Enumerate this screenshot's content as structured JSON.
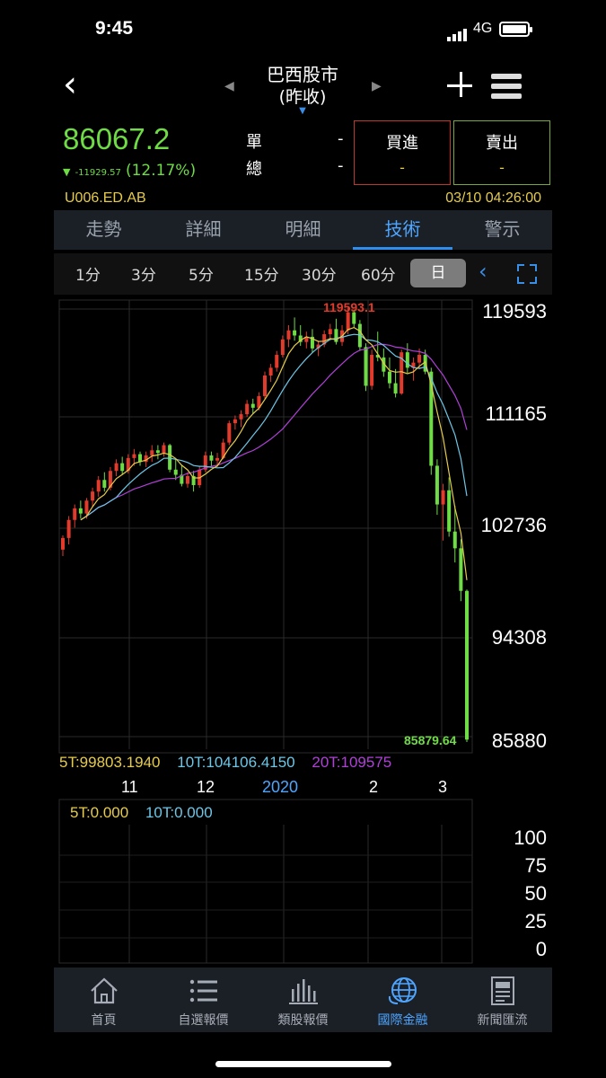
{
  "status_bar": {
    "time": "9:45",
    "network": "4G"
  },
  "header": {
    "title": "巴西股市",
    "subtitle": "(昨收)",
    "back_icon": "chevron-left-icon",
    "add_icon": "plus-icon",
    "menu_icon": "hamburger-menu-icon"
  },
  "quote": {
    "price": "86067.2",
    "change_abs": "-11929.57",
    "change_pct": "(12.17%)",
    "vol_single_label": "單",
    "vol_single_value": "-",
    "vol_total_label": "總",
    "vol_total_value": "-",
    "buy_label": "買進",
    "buy_value": "-",
    "sell_label": "賣出",
    "sell_value": "-",
    "code": "U006.ED.AB",
    "datetime": "03/10 04:26:00",
    "up_color": "#e23b2b",
    "down_color": "#6fdc46"
  },
  "tabs": [
    {
      "label": "走勢",
      "active": false
    },
    {
      "label": "詳細",
      "active": false
    },
    {
      "label": "明細",
      "active": false
    },
    {
      "label": "技術",
      "active": true
    },
    {
      "label": "警示",
      "active": false
    }
  ],
  "intervals": [
    {
      "label": "1分",
      "selected": false
    },
    {
      "label": "3分",
      "selected": false
    },
    {
      "label": "5分",
      "selected": false
    },
    {
      "label": "15分",
      "selected": false
    },
    {
      "label": "30分",
      "selected": false
    },
    {
      "label": "60分",
      "selected": false
    },
    {
      "label": "日",
      "selected": true
    }
  ],
  "chart": {
    "high_label": "119593.1",
    "low_label": "85879.64",
    "y_labels": [
      "119593",
      "111165",
      "102736",
      "94308",
      "85880"
    ],
    "x_labels": [
      "11",
      "12",
      "2020",
      "2",
      "3"
    ],
    "ma_legend": [
      {
        "label": "5T:99803.1940",
        "color": "#e6cc4a"
      },
      {
        "label": "10T:104106.4150",
        "color": "#6ec6e6"
      },
      {
        "label": "20T:109575",
        "color": "#b040d8"
      }
    ],
    "osc_legend": [
      {
        "label": "5T:0.000",
        "color": "#e6cc4a"
      },
      {
        "label": "10T:0.000",
        "color": "#6ec6e6"
      }
    ],
    "osc_labels": [
      "100",
      "75",
      "50",
      "25",
      "0"
    ]
  },
  "chart_data": {
    "type": "candlestick",
    "ylim": [
      85880,
      119593
    ],
    "colors": {
      "up": "#e23b2b",
      "down": "#6fdc46",
      "ma5": "#e6cc4a",
      "ma10": "#6ec6e6",
      "ma20": "#b040d8"
    },
    "candles": [
      [
        100800,
        101900,
        100300,
        101700
      ],
      [
        101700,
        103400,
        101200,
        103100
      ],
      [
        103100,
        104300,
        102500,
        104000
      ],
      [
        104000,
        104600,
        103200,
        103600
      ],
      [
        103600,
        104800,
        103200,
        104600
      ],
      [
        104600,
        105600,
        104100,
        105300
      ],
      [
        105300,
        106500,
        104900,
        106200
      ],
      [
        106200,
        106800,
        105300,
        105600
      ],
      [
        105600,
        107200,
        105400,
        106900
      ],
      [
        106900,
        107800,
        106500,
        107500
      ],
      [
        107500,
        108000,
        106600,
        106900
      ],
      [
        106900,
        108200,
        106700,
        107900
      ],
      [
        107900,
        108600,
        107300,
        108200
      ],
      [
        108200,
        108400,
        107300,
        107600
      ],
      [
        107600,
        108400,
        107200,
        108100
      ],
      [
        108100,
        108900,
        107600,
        108500
      ],
      [
        108500,
        108900,
        107800,
        108300
      ],
      [
        108300,
        109100,
        108000,
        108900
      ],
      [
        108900,
        109000,
        106800,
        107000
      ],
      [
        107000,
        107800,
        106200,
        106600
      ],
      [
        106600,
        107300,
        105700,
        105900
      ],
      [
        105900,
        106800,
        105600,
        106500
      ],
      [
        106500,
        106900,
        105300,
        105800
      ],
      [
        105800,
        107300,
        105600,
        107000
      ],
      [
        107000,
        108400,
        106800,
        108100
      ],
      [
        108100,
        108400,
        107300,
        107700
      ],
      [
        107700,
        108300,
        107200,
        107900
      ],
      [
        107900,
        109400,
        107800,
        109100
      ],
      [
        109100,
        110800,
        108900,
        110600
      ],
      [
        110600,
        111200,
        110100,
        110900
      ],
      [
        110900,
        111600,
        110300,
        111300
      ],
      [
        111300,
        112400,
        111100,
        112100
      ],
      [
        112100,
        112500,
        111300,
        111800
      ],
      [
        111800,
        113000,
        111600,
        112700
      ],
      [
        112700,
        114600,
        112500,
        114300
      ],
      [
        114300,
        115200,
        113800,
        114900
      ],
      [
        114900,
        116200,
        114600,
        115900
      ],
      [
        115900,
        117400,
        115700,
        117100
      ],
      [
        117100,
        118200,
        116500,
        117800
      ],
      [
        117800,
        118800,
        117000,
        117400
      ],
      [
        117400,
        118200,
        116600,
        116900
      ],
      [
        116900,
        117700,
        116400,
        117300
      ],
      [
        117300,
        117900,
        116100,
        116400
      ],
      [
        116400,
        117000,
        115800,
        116700
      ],
      [
        116700,
        117800,
        116500,
        117500
      ],
      [
        117500,
        118300,
        117100,
        117900
      ],
      [
        117900,
        118700,
        116700,
        116900
      ],
      [
        116900,
        118200,
        116600,
        117800
      ],
      [
        117800,
        119593,
        117500,
        119200
      ],
      [
        119200,
        119400,
        118000,
        118300
      ],
      [
        118300,
        118600,
        116200,
        116500
      ],
      [
        116500,
        116800,
        113100,
        113500
      ],
      [
        113500,
        116300,
        113200,
        115900
      ],
      [
        115900,
        117700,
        115400,
        115700
      ],
      [
        115700,
        116400,
        114200,
        114600
      ],
      [
        114600,
        115700,
        113300,
        113700
      ],
      [
        113700,
        114800,
        112600,
        112900
      ],
      [
        112900,
        116300,
        112800,
        116100
      ],
      [
        116100,
        116800,
        114500,
        114900
      ],
      [
        114900,
        115700,
        113900,
        115300
      ],
      [
        115300,
        116400,
        114800,
        115900
      ],
      [
        115900,
        116300,
        114400,
        114600
      ],
      [
        114600,
        114900,
        106600,
        107300
      ],
      [
        107300,
        107800,
        103500,
        104300
      ],
      [
        104300,
        105900,
        101500,
        105400
      ],
      [
        105400,
        106400,
        101800,
        102200
      ],
      [
        102200,
        104200,
        99800,
        100900
      ],
      [
        100900,
        101600,
        96800,
        97600
      ],
      [
        97600,
        97700,
        85879.64,
        86067.2
      ]
    ]
  },
  "nav": [
    {
      "label": "首頁",
      "icon": "home-icon",
      "active": false
    },
    {
      "label": "自選報價",
      "icon": "watchlist-icon",
      "active": false
    },
    {
      "label": "類股報價",
      "icon": "bar-chart-icon",
      "active": false
    },
    {
      "label": "國際金融",
      "icon": "globe-icon",
      "active": true
    },
    {
      "label": "新聞匯流",
      "icon": "news-icon",
      "active": false
    }
  ]
}
